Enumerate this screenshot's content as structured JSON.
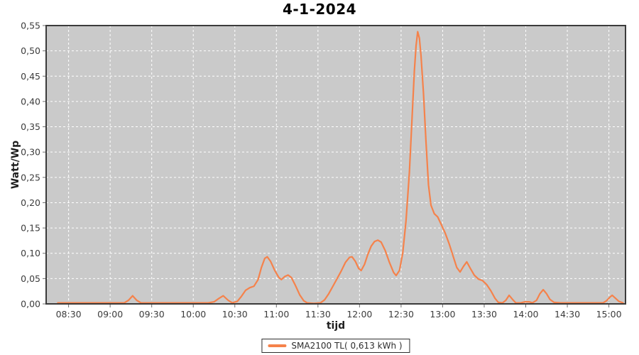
{
  "chart_data": {
    "type": "line",
    "title": "4-1-2024",
    "xlabel": "tijd",
    "ylabel": "Watt/Wp",
    "x_domain_hours": [
      8.23,
      15.2
    ],
    "ylim": [
      0,
      0.55
    ],
    "x_ticks": [
      {
        "hour": 8.5,
        "label": "08:30"
      },
      {
        "hour": 9.0,
        "label": "09:00"
      },
      {
        "hour": 9.5,
        "label": "09:30"
      },
      {
        "hour": 10.0,
        "label": "10:00"
      },
      {
        "hour": 10.5,
        "label": "10:30"
      },
      {
        "hour": 11.0,
        "label": "11:00"
      },
      {
        "hour": 11.5,
        "label": "11:30"
      },
      {
        "hour": 12.0,
        "label": "12:00"
      },
      {
        "hour": 12.5,
        "label": "12:30"
      },
      {
        "hour": 13.0,
        "label": "13:00"
      },
      {
        "hour": 13.5,
        "label": "13:30"
      },
      {
        "hour": 14.0,
        "label": "14:00"
      },
      {
        "hour": 14.5,
        "label": "14:30"
      },
      {
        "hour": 15.0,
        "label": "15:00"
      }
    ],
    "y_ticks": [
      {
        "value": 0.0,
        "label": "0,00"
      },
      {
        "value": 0.05,
        "label": "0,05"
      },
      {
        "value": 0.1,
        "label": "0,10"
      },
      {
        "value": 0.15,
        "label": "0,15"
      },
      {
        "value": 0.2,
        "label": "0,20"
      },
      {
        "value": 0.25,
        "label": "0,25"
      },
      {
        "value": 0.3,
        "label": "0,30"
      },
      {
        "value": 0.35,
        "label": "0,35"
      },
      {
        "value": 0.4,
        "label": "0,40"
      },
      {
        "value": 0.45,
        "label": "0,45"
      },
      {
        "value": 0.5,
        "label": "0,50"
      },
      {
        "value": 0.55,
        "label": "0,55"
      }
    ],
    "grid": {
      "color": "#ffffff",
      "style": "dashed",
      "on": true
    },
    "plot_background": "#cacaca",
    "border_color": "#3b3b3b",
    "tick_color": "#6e6e6e",
    "tick_label_color": "#3c3c3c",
    "legend_position": "bottom-center",
    "series": [
      {
        "name": "SMA2100 TL( 0,613 kWh )",
        "color": "#f5824b",
        "points_time_hours_value": [
          [
            8.37,
            0.002
          ],
          [
            8.6,
            0.002
          ],
          [
            8.85,
            0.002
          ],
          [
            9.05,
            0.002
          ],
          [
            9.17,
            0.002
          ],
          [
            9.22,
            0.007
          ],
          [
            9.27,
            0.016
          ],
          [
            9.32,
            0.007
          ],
          [
            9.37,
            0.002
          ],
          [
            9.6,
            0.002
          ],
          [
            9.9,
            0.002
          ],
          [
            10.18,
            0.002
          ],
          [
            10.25,
            0.004
          ],
          [
            10.31,
            0.011
          ],
          [
            10.36,
            0.016
          ],
          [
            10.42,
            0.007
          ],
          [
            10.47,
            0.002
          ],
          [
            10.53,
            0.005
          ],
          [
            10.58,
            0.015
          ],
          [
            10.63,
            0.027
          ],
          [
            10.68,
            0.032
          ],
          [
            10.73,
            0.035
          ],
          [
            10.78,
            0.048
          ],
          [
            10.82,
            0.072
          ],
          [
            10.86,
            0.09
          ],
          [
            10.89,
            0.093
          ],
          [
            10.93,
            0.084
          ],
          [
            10.98,
            0.066
          ],
          [
            11.03,
            0.052
          ],
          [
            11.06,
            0.048
          ],
          [
            11.1,
            0.054
          ],
          [
            11.14,
            0.057
          ],
          [
            11.18,
            0.052
          ],
          [
            11.23,
            0.036
          ],
          [
            11.28,
            0.018
          ],
          [
            11.33,
            0.006
          ],
          [
            11.37,
            0.002
          ],
          [
            11.45,
            0.001
          ],
          [
            11.53,
            0.002
          ],
          [
            11.58,
            0.008
          ],
          [
            11.63,
            0.02
          ],
          [
            11.68,
            0.035
          ],
          [
            11.73,
            0.05
          ],
          [
            11.78,
            0.065
          ],
          [
            11.83,
            0.082
          ],
          [
            11.88,
            0.092
          ],
          [
            11.91,
            0.093
          ],
          [
            11.95,
            0.084
          ],
          [
            11.99,
            0.07
          ],
          [
            12.02,
            0.066
          ],
          [
            12.06,
            0.078
          ],
          [
            12.1,
            0.098
          ],
          [
            12.14,
            0.114
          ],
          [
            12.18,
            0.123
          ],
          [
            12.22,
            0.126
          ],
          [
            12.26,
            0.122
          ],
          [
            12.31,
            0.105
          ],
          [
            12.36,
            0.082
          ],
          [
            12.41,
            0.062
          ],
          [
            12.44,
            0.056
          ],
          [
            12.48,
            0.066
          ],
          [
            12.52,
            0.1
          ],
          [
            12.56,
            0.165
          ],
          [
            12.6,
            0.26
          ],
          [
            12.63,
            0.36
          ],
          [
            12.66,
            0.46
          ],
          [
            12.68,
            0.51
          ],
          [
            12.7,
            0.538
          ],
          [
            12.72,
            0.525
          ],
          [
            12.74,
            0.49
          ],
          [
            12.77,
            0.415
          ],
          [
            12.8,
            0.32
          ],
          [
            12.83,
            0.235
          ],
          [
            12.86,
            0.195
          ],
          [
            12.9,
            0.178
          ],
          [
            12.94,
            0.172
          ],
          [
            12.98,
            0.158
          ],
          [
            13.03,
            0.14
          ],
          [
            13.08,
            0.118
          ],
          [
            13.13,
            0.092
          ],
          [
            13.17,
            0.072
          ],
          [
            13.21,
            0.063
          ],
          [
            13.25,
            0.074
          ],
          [
            13.29,
            0.083
          ],
          [
            13.33,
            0.071
          ],
          [
            13.38,
            0.057
          ],
          [
            13.43,
            0.049
          ],
          [
            13.48,
            0.046
          ],
          [
            13.53,
            0.038
          ],
          [
            13.58,
            0.026
          ],
          [
            13.63,
            0.011
          ],
          [
            13.67,
            0.003
          ],
          [
            13.72,
            0.002
          ],
          [
            13.76,
            0.007
          ],
          [
            13.8,
            0.017
          ],
          [
            13.84,
            0.009
          ],
          [
            13.88,
            0.002
          ],
          [
            13.94,
            0.002
          ],
          [
            13.99,
            0.004
          ],
          [
            14.04,
            0.004
          ],
          [
            14.08,
            0.002
          ],
          [
            14.13,
            0.007
          ],
          [
            14.17,
            0.02
          ],
          [
            14.21,
            0.028
          ],
          [
            14.25,
            0.02
          ],
          [
            14.29,
            0.009
          ],
          [
            14.34,
            0.003
          ],
          [
            14.42,
            0.002
          ],
          [
            14.55,
            0.002
          ],
          [
            14.7,
            0.002
          ],
          [
            14.85,
            0.002
          ],
          [
            14.93,
            0.002
          ],
          [
            14.97,
            0.006
          ],
          [
            15.01,
            0.013
          ],
          [
            15.04,
            0.017
          ],
          [
            15.08,
            0.011
          ],
          [
            15.12,
            0.005
          ],
          [
            15.17,
            0.002
          ]
        ]
      }
    ]
  }
}
